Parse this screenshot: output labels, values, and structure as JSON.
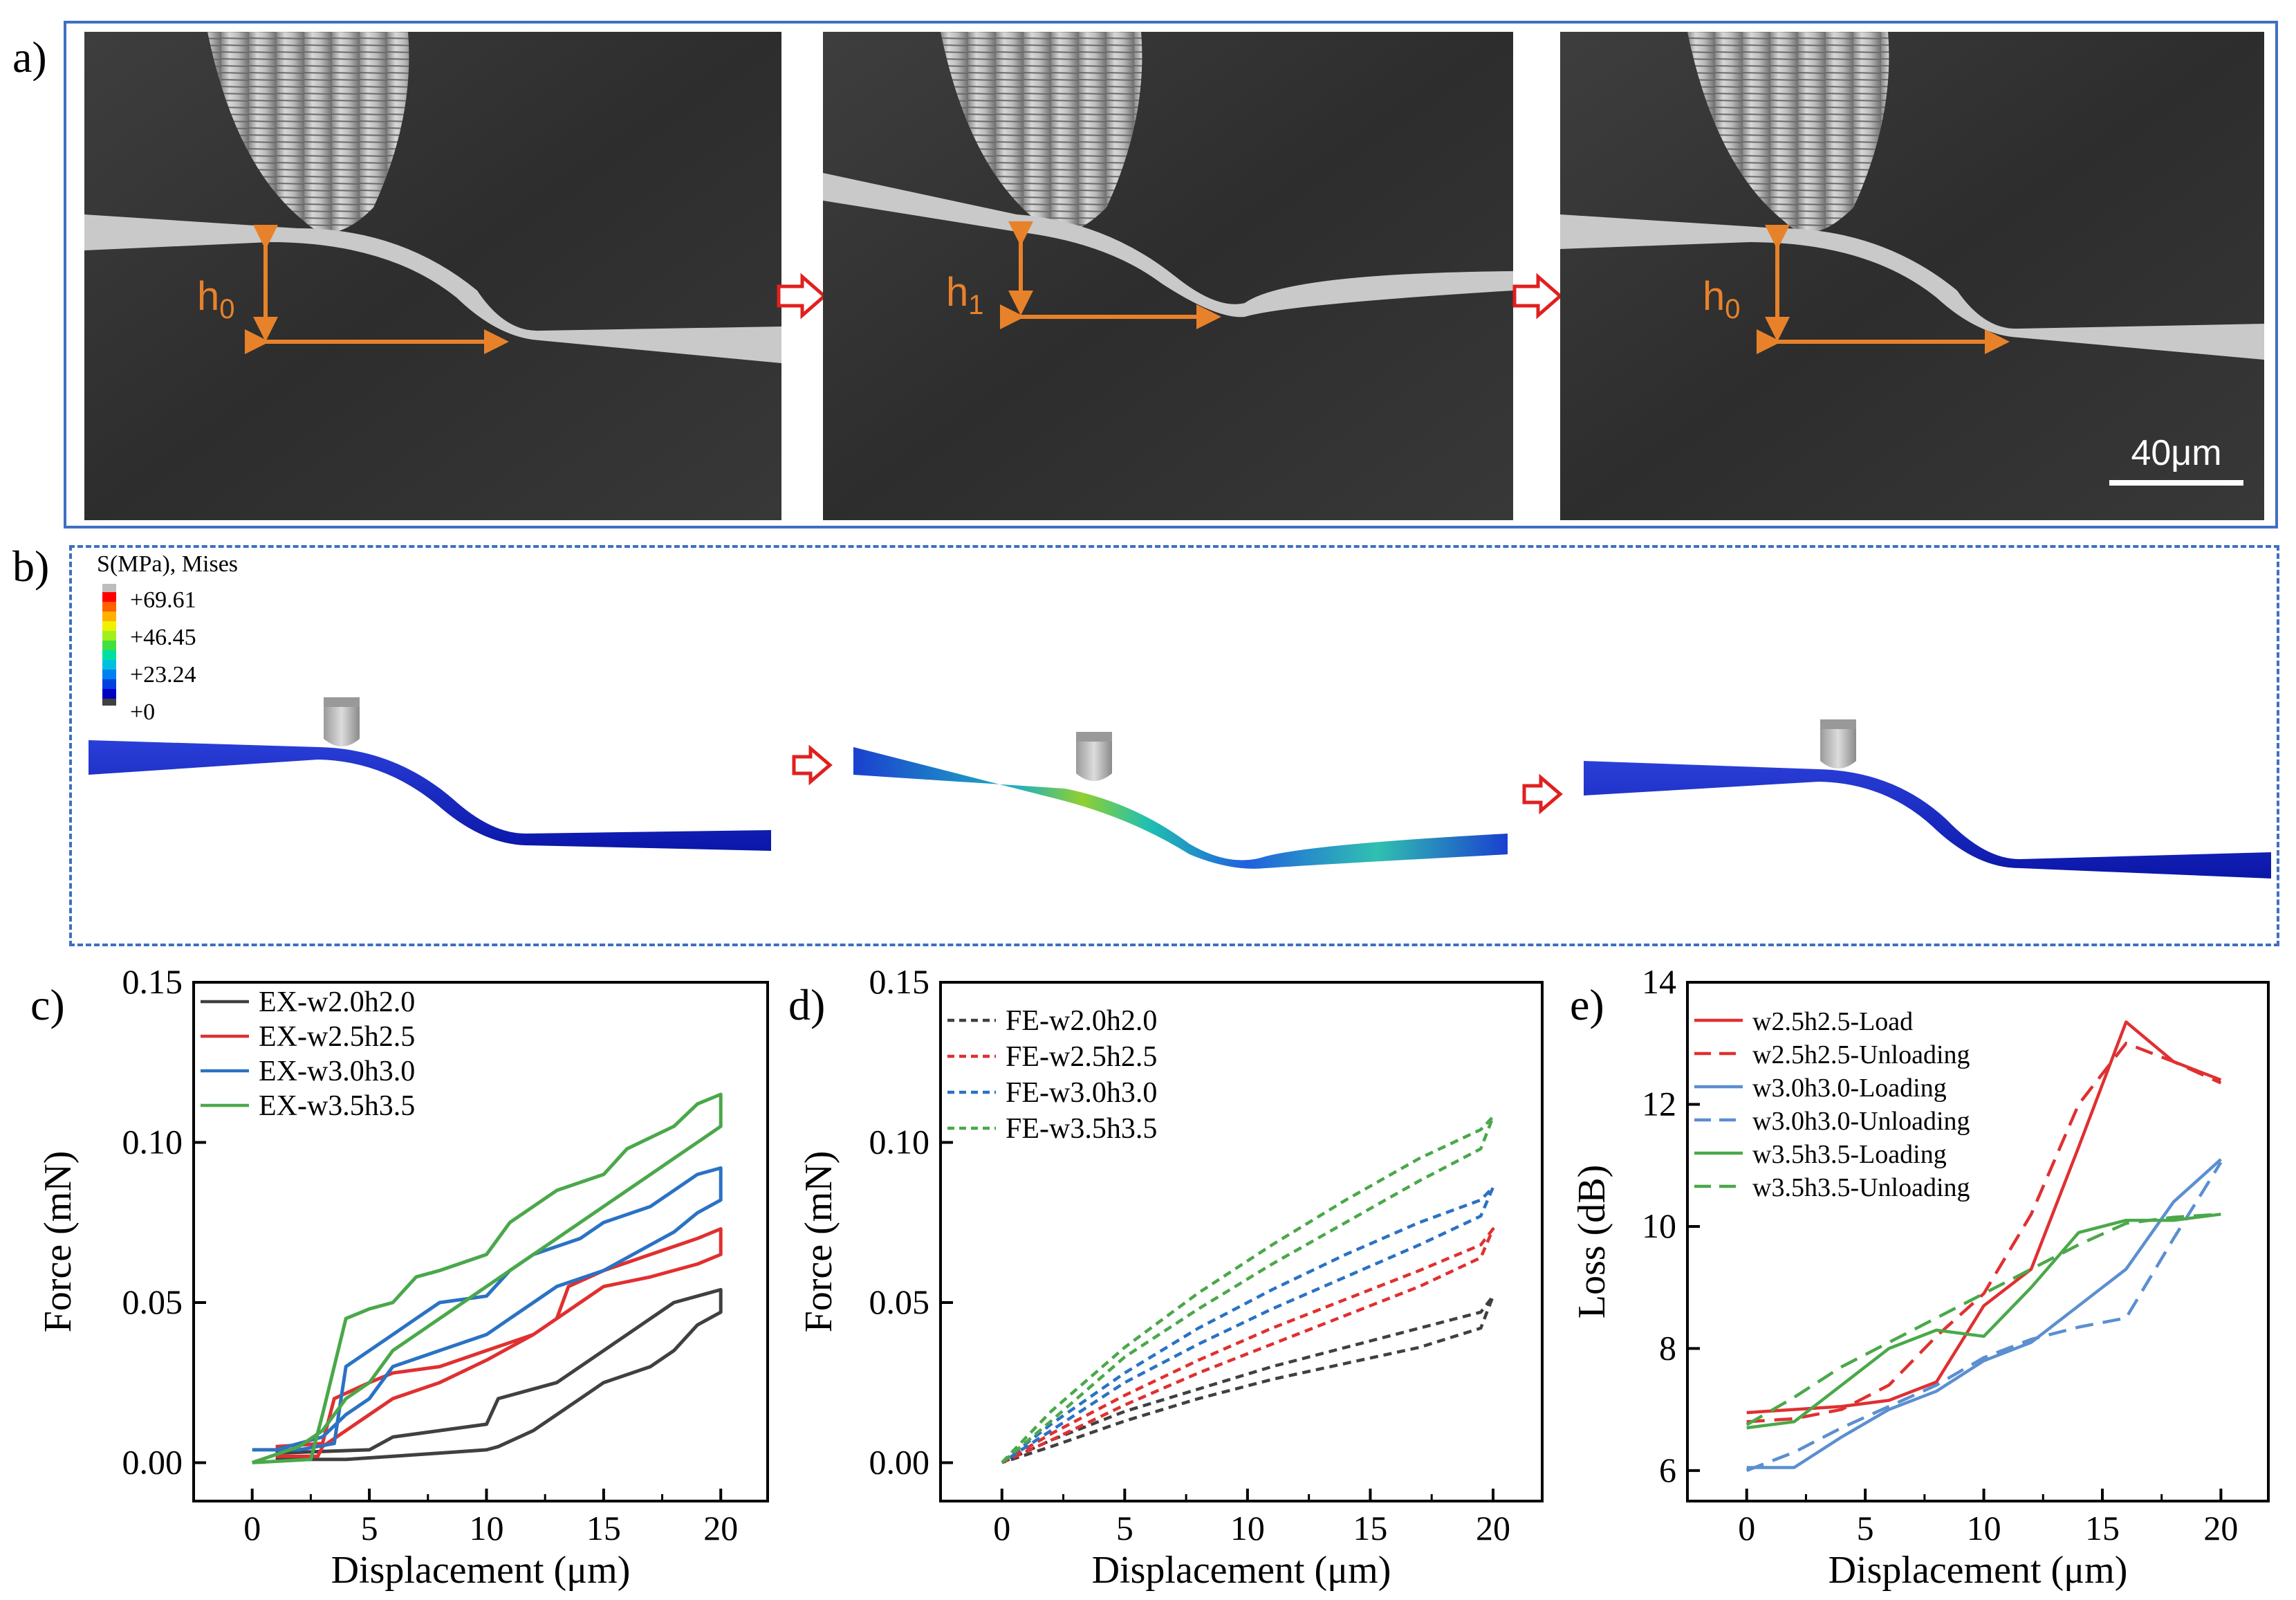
{
  "panels": {
    "a_label": "a)",
    "b_label": "b)",
    "c_label": "c)",
    "d_label": "d)",
    "e_label": "e)"
  },
  "sem": {
    "heights": [
      "h",
      "h",
      "h"
    ],
    "subscripts": [
      "0",
      "1",
      "0"
    ],
    "scale_bar": "40μm",
    "arrow_color": "#e8822a"
  },
  "fe": {
    "legend_title": "S(MPa), Mises",
    "legend_values": [
      "+69.61",
      "+46.45",
      "+23.24",
      "+0"
    ]
  },
  "chart_data": [
    {
      "id": "c",
      "type": "line",
      "xlabel": "Displacement (μm)",
      "ylabel": "Force (mN)",
      "xlim": [
        -2.5,
        22
      ],
      "ylim": [
        -0.012,
        0.15
      ],
      "xticks": [
        "0",
        "5",
        "10",
        "15",
        "20"
      ],
      "yticks": [
        "0.00",
        "0.05",
        "0.10",
        "0.15"
      ],
      "series": [
        {
          "name": "EX-w2.0h2.0",
          "color": "#404040",
          "style": "solid",
          "x": [
            1,
            5,
            6,
            8,
            10,
            10.5,
            13,
            14,
            15,
            16,
            17,
            18,
            19,
            20,
            20,
            19,
            18,
            17,
            15,
            14,
            13,
            12,
            10.5,
            10,
            8,
            6,
            4,
            1
          ],
          "y": [
            0.003,
            0.004,
            0.008,
            0.01,
            0.012,
            0.02,
            0.025,
            0.03,
            0.035,
            0.04,
            0.045,
            0.05,
            0.052,
            0.054,
            0.047,
            0.043,
            0.035,
            0.03,
            0.025,
            0.02,
            0.015,
            0.01,
            0.005,
            0.004,
            0.003,
            0.002,
            0.001,
            0.001
          ]
        },
        {
          "name": "EX-w2.5h2.5",
          "color": "#e03030",
          "style": "solid",
          "x": [
            1,
            3,
            3.5,
            5,
            6,
            8,
            10,
            12,
            13,
            13.5,
            15,
            17,
            19,
            20,
            20,
            19,
            17,
            15,
            14,
            12,
            10,
            8,
            6,
            5,
            4,
            3,
            2.8,
            1
          ],
          "y": [
            0.005,
            0.006,
            0.02,
            0.025,
            0.028,
            0.03,
            0.035,
            0.04,
            0.045,
            0.055,
            0.06,
            0.065,
            0.07,
            0.073,
            0.065,
            0.062,
            0.058,
            0.055,
            0.05,
            0.04,
            0.032,
            0.025,
            0.02,
            0.015,
            0.01,
            0.005,
            0.002,
            0.002
          ]
        },
        {
          "name": "EX-w3.0h3.0",
          "color": "#2a72c4",
          "style": "solid",
          "x": [
            0,
            2,
            3.5,
            4,
            5,
            6,
            7,
            8,
            10,
            11,
            12,
            14,
            15,
            17,
            19,
            20,
            20,
            19,
            18,
            17,
            15,
            13,
            12,
            11,
            10,
            8,
            6,
            5,
            4,
            3,
            1
          ],
          "y": [
            0.004,
            0.004,
            0.006,
            0.03,
            0.035,
            0.04,
            0.045,
            0.05,
            0.052,
            0.06,
            0.065,
            0.07,
            0.075,
            0.08,
            0.09,
            0.092,
            0.082,
            0.078,
            0.072,
            0.068,
            0.06,
            0.055,
            0.05,
            0.045,
            0.04,
            0.035,
            0.03,
            0.02,
            0.015,
            0.008,
            0.004
          ]
        },
        {
          "name": "EX-w3.5h3.5",
          "color": "#4aa84a",
          "style": "solid",
          "x": [
            0,
            2.5,
            3,
            4,
            5,
            6,
            7,
            8,
            10,
            11,
            12,
            13,
            15,
            16,
            18,
            19,
            20,
            20,
            19,
            18,
            17,
            15,
            13,
            12,
            10,
            8,
            6,
            5,
            4,
            3,
            2,
            0
          ],
          "y": [
            0.0,
            0.001,
            0.015,
            0.045,
            0.048,
            0.05,
            0.058,
            0.06,
            0.065,
            0.075,
            0.08,
            0.085,
            0.09,
            0.098,
            0.105,
            0.112,
            0.115,
            0.105,
            0.1,
            0.095,
            0.09,
            0.08,
            0.07,
            0.065,
            0.055,
            0.045,
            0.035,
            0.025,
            0.02,
            0.01,
            0.005,
            0.0
          ]
        }
      ]
    },
    {
      "id": "d",
      "type": "line",
      "xlabel": "Displacement (μm)",
      "ylabel": "Force (mN)",
      "xlim": [
        -2.5,
        22
      ],
      "ylim": [
        -0.012,
        0.15
      ],
      "xticks": [
        "0",
        "5",
        "10",
        "15",
        "20"
      ],
      "yticks": [
        "0.00",
        "0.05",
        "0.10",
        "0.15"
      ],
      "series": [
        {
          "name": "FE-w2.0h2.0",
          "color": "#404040",
          "style": "dashed",
          "x": [
            0,
            2,
            5,
            8,
            11,
            14,
            17,
            19.5,
            20,
            19.5,
            17,
            14,
            11,
            8,
            5,
            2,
            0
          ],
          "y": [
            0.0,
            0.007,
            0.016,
            0.023,
            0.03,
            0.036,
            0.042,
            0.047,
            0.052,
            0.042,
            0.036,
            0.031,
            0.026,
            0.02,
            0.013,
            0.005,
            0.0
          ]
        },
        {
          "name": "FE-w2.5h2.5",
          "color": "#e03030",
          "style": "dashed",
          "x": [
            0,
            2,
            5,
            8,
            11,
            14,
            17,
            19.5,
            20,
            19.5,
            17,
            14,
            11,
            8,
            5,
            2,
            0
          ],
          "y": [
            0.0,
            0.009,
            0.021,
            0.032,
            0.042,
            0.051,
            0.06,
            0.068,
            0.073,
            0.064,
            0.055,
            0.046,
            0.037,
            0.028,
            0.018,
            0.007,
            0.0
          ]
        },
        {
          "name": "FE-w3.0h3.0",
          "color": "#2a72c4",
          "style": "dashed",
          "x": [
            0,
            2,
            5,
            8,
            11,
            14,
            17,
            19.5,
            20,
            19.5,
            17,
            14,
            11,
            8,
            5,
            2,
            0
          ],
          "y": [
            0.0,
            0.012,
            0.028,
            0.042,
            0.054,
            0.065,
            0.075,
            0.082,
            0.086,
            0.077,
            0.068,
            0.058,
            0.048,
            0.037,
            0.025,
            0.01,
            0.0
          ]
        },
        {
          "name": "FE-w3.5h3.5",
          "color": "#4aa84a",
          "style": "dashed",
          "x": [
            0,
            2,
            5,
            8,
            11,
            14,
            17,
            19.5,
            20,
            19.5,
            17,
            14,
            11,
            8,
            5,
            2,
            0
          ],
          "y": [
            0.0,
            0.016,
            0.036,
            0.053,
            0.068,
            0.082,
            0.095,
            0.104,
            0.108,
            0.098,
            0.088,
            0.075,
            0.062,
            0.048,
            0.033,
            0.013,
            0.0
          ]
        }
      ]
    },
    {
      "id": "e",
      "type": "line",
      "xlabel": "Displacement (μm)",
      "ylabel": "Loss (dB)",
      "xlim": [
        -2.5,
        22
      ],
      "ylim": [
        5.5,
        14
      ],
      "xticks": [
        "0",
        "5",
        "10",
        "15",
        "20"
      ],
      "yticks": [
        "6",
        "8",
        "10",
        "12",
        "14"
      ],
      "series": [
        {
          "name": "w2.5h2.5-Load",
          "color": "#e03030",
          "style": "solid",
          "x": [
            0,
            2,
            4,
            6,
            8,
            10,
            12,
            14,
            16,
            18,
            20
          ],
          "y": [
            6.95,
            7.0,
            7.05,
            7.15,
            7.45,
            8.7,
            9.3,
            11.3,
            13.35,
            12.7,
            12.4
          ]
        },
        {
          "name": "w2.5h2.5-Unloading",
          "color": "#e03030",
          "style": "dashed",
          "x": [
            0,
            2,
            4,
            6,
            8,
            10,
            12,
            14,
            16,
            18,
            20
          ],
          "y": [
            6.8,
            6.85,
            7.0,
            7.4,
            8.2,
            8.9,
            10.2,
            12.0,
            13.0,
            12.7,
            12.35
          ]
        },
        {
          "name": "w3.0h3.0-Loading",
          "color": "#5b8fd0",
          "style": "solid",
          "x": [
            0,
            2,
            4,
            6,
            8,
            10,
            12,
            14,
            16,
            18,
            20
          ],
          "y": [
            6.05,
            6.05,
            6.55,
            7.0,
            7.3,
            7.8,
            8.1,
            8.7,
            9.3,
            10.4,
            11.1
          ]
        },
        {
          "name": "w3.0h3.0-Unloading",
          "color": "#5b8fd0",
          "style": "dashed",
          "x": [
            0,
            2,
            4,
            6,
            8,
            10,
            12,
            14,
            16,
            18,
            20
          ],
          "y": [
            6.0,
            6.3,
            6.7,
            7.05,
            7.4,
            7.85,
            8.15,
            8.35,
            8.5,
            9.8,
            11.05
          ]
        },
        {
          "name": "w3.5h3.5-Loading",
          "color": "#4aa84a",
          "style": "solid",
          "x": [
            0,
            2,
            4,
            6,
            8,
            10,
            12,
            14,
            16,
            18,
            20
          ],
          "y": [
            6.7,
            6.8,
            7.4,
            8.0,
            8.3,
            8.2,
            9.0,
            9.9,
            10.1,
            10.1,
            10.2
          ]
        },
        {
          "name": "w3.5h3.5-Unloading",
          "color": "#4aa84a",
          "style": "dashed",
          "x": [
            0,
            2,
            4,
            6,
            8,
            10,
            12,
            14,
            16,
            18,
            20
          ],
          "y": [
            6.75,
            7.2,
            7.7,
            8.1,
            8.5,
            8.9,
            9.3,
            9.7,
            10.05,
            10.15,
            10.2
          ]
        }
      ]
    }
  ]
}
